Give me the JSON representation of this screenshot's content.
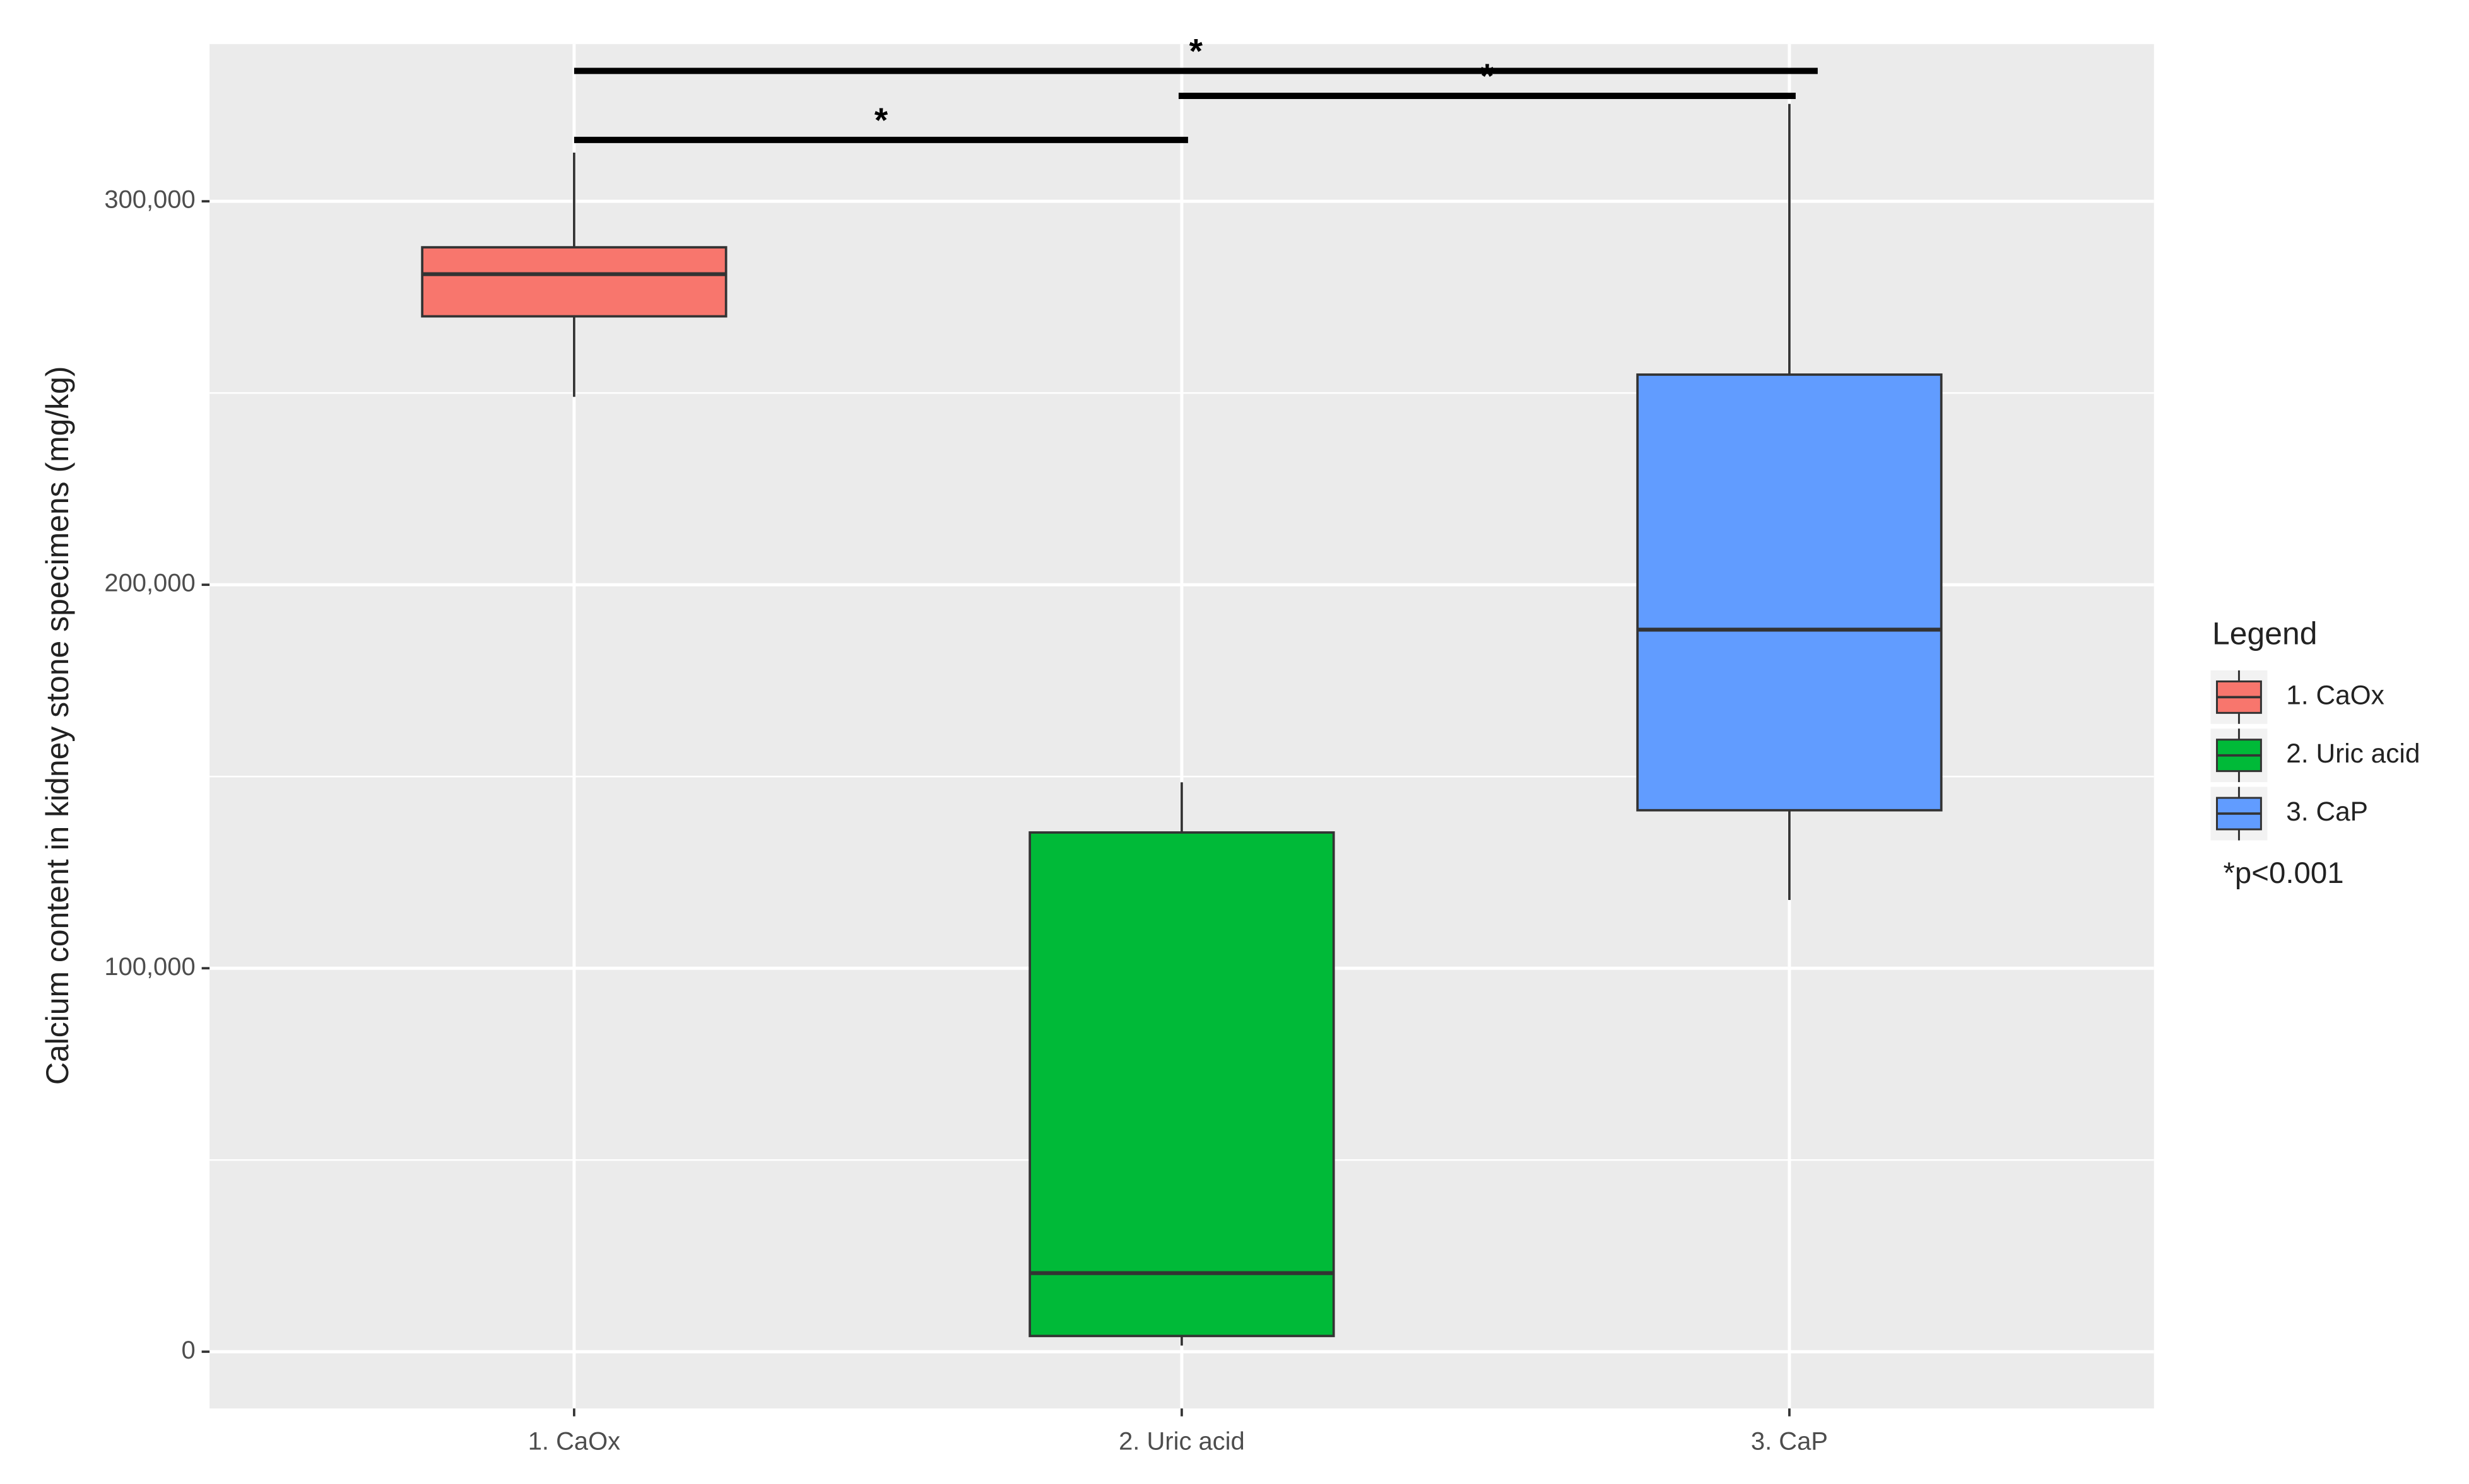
{
  "chart_data": {
    "type": "box",
    "y_label": "Calcium content in kidney stone specimens (mg/kg)",
    "categories": [
      "1. CaOx",
      "2. Uric acid",
      "3. CaP"
    ],
    "colors": [
      "#f8766d",
      "#00ba38",
      "#619cff"
    ],
    "values": [
      {
        "min": 249000,
        "q1": 270000,
        "median": 281000,
        "q3": 288000,
        "max": 312700
      },
      {
        "min": 1600,
        "q1": 4100,
        "median": 20500,
        "q3": 135400,
        "max": 148500
      },
      {
        "min": 117800,
        "q1": 141200,
        "median": 188300,
        "q3": 254800,
        "max": 325400
      }
    ],
    "ylim": [
      -14800,
      341000
    ],
    "yticks": [
      0,
      {
        "value": 100000,
        "label": "100,000"
      },
      {
        "value": 200000,
        "label": "200,000"
      },
      {
        "value": 300000,
        "label": "300,000"
      }
    ],
    "y_minor_grid": [
      50000,
      150000,
      250000
    ],
    "grid": true,
    "comparisons": [
      {
        "from": 0,
        "to": 1,
        "y": 316000,
        "label": "*"
      },
      {
        "from": 1,
        "to": 2,
        "y": 327500,
        "label": "*"
      },
      {
        "from": 0,
        "to": 2,
        "y": 334000,
        "label": "*"
      }
    ],
    "legend_title": "Legend",
    "legend_note": "*p<0.001",
    "legend_position": "right"
  }
}
